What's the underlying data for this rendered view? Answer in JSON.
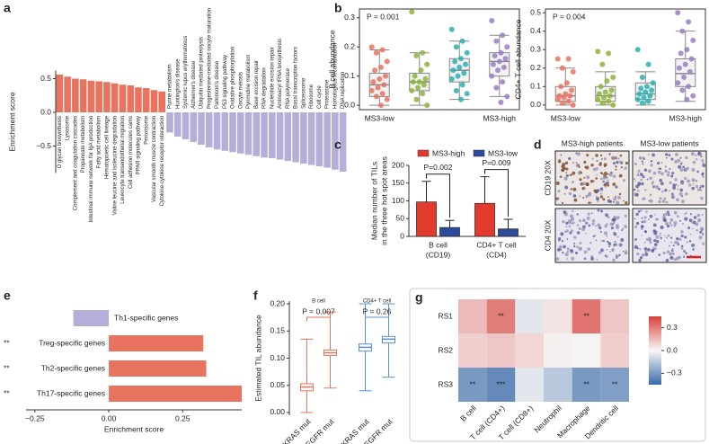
{
  "chart_data": [
    {
      "type": "bar",
      "panel": "a",
      "y_label": "Enrichment score",
      "categories": [
        "O glycan biosynthesis",
        "Lysosome",
        "Complement and coagulation cascades",
        "Propanoate metabolism",
        "Intestinal immune network for IgA production",
        "Fatty acid metabolism",
        "Hematopoietic cell lineage",
        "Valine leucine and isoleucine degradation",
        "Leukocyte transendothelial migration",
        "Cell adhesion molecules cams",
        "PPAR signaling pathway",
        "Peroxisome",
        "Vascular smooth muscle contraction",
        "Cytokine-cytokine receptor interaction",
        "Purine metabolism",
        "Huntington's disease",
        "Systemic lupus erythematosus",
        "Alzheimer's disease",
        "Ubiquitin mediated proteolysis",
        "Progesterone-mediated oocyte maturation",
        "Parkinson's disease",
        "P53 signaling pathway",
        "Oxidative phosphorylation",
        "Oocyte meiosis",
        "Pyrimidine metabolism",
        "Base excision repair",
        "RNA degradation",
        "Nucleotide excision repair",
        "Aminoacyl tRNA biosynthesis",
        "RNA polymerase",
        "Basal transcription factors",
        "Spliceosome",
        "Ribosome",
        "Cell cycle",
        "Proteasome",
        "Homologous recombination",
        "DNA replication"
      ],
      "values": [
        0.56,
        0.53,
        0.5,
        0.49,
        0.47,
        0.46,
        0.45,
        0.43,
        0.41,
        0.4,
        0.37,
        0.36,
        0.33,
        0.31,
        -0.3,
        -0.36,
        -0.4,
        -0.44,
        -0.48,
        -0.52,
        -0.55,
        -0.57,
        -0.59,
        -0.61,
        -0.63,
        -0.65,
        -0.67,
        -0.68,
        -0.7,
        -0.72,
        -0.74,
        -0.76,
        -0.78,
        -0.8,
        -0.82,
        -0.85,
        -0.88
      ],
      "colors": {
        "positive": "#e8735f",
        "negative": "#b4afd8"
      },
      "ylim": [
        -0.9,
        0.62
      ],
      "yticks": [
        0.5,
        {
          "value": 0,
          "label": "0.0"
        },
        {
          "value": -0.5,
          "label": "−0.5"
        }
      ]
    },
    {
      "type": "strip_box",
      "panel": "b",
      "y_label": "B cell abundance",
      "pvalue": "P = 0.001",
      "categories": [
        "MS3-low",
        null,
        null,
        "MS3-high"
      ],
      "ylim": [
        -0.015,
        0.33
      ],
      "yticks": [
        {
          "value": 0,
          "label": "0.0"
        },
        0.1,
        0.2,
        0.3
      ],
      "series": [
        {
          "color": "#e8735f",
          "values": [
            0.2,
            0.19,
            0.18,
            0.15,
            0.13,
            0.12,
            0.1,
            0.09,
            0.08,
            0.07,
            0.06,
            0.05,
            0.04,
            0.03,
            0.02,
            0.0
          ],
          "box": {
            "whislo": 0.0,
            "q1": 0.03,
            "med": 0.07,
            "q3": 0.11,
            "whishi": 0.19
          }
        },
        {
          "color": "#8db43b",
          "values": [
            0.32,
            0.18,
            0.17,
            0.14,
            0.12,
            0.1,
            0.09,
            0.08,
            0.08,
            0.07,
            0.06,
            0.05,
            0.04,
            0.02,
            0.0
          ],
          "box": {
            "whislo": 0.0,
            "q1": 0.05,
            "med": 0.08,
            "q3": 0.11,
            "whishi": 0.18
          }
        },
        {
          "color": "#2ab0b0",
          "values": [
            0.26,
            0.22,
            0.2,
            0.18,
            0.16,
            0.15,
            0.14,
            0.13,
            0.12,
            0.11,
            0.1,
            0.09,
            0.07,
            0.05,
            0.04,
            0.02
          ],
          "box": {
            "whislo": 0.02,
            "q1": 0.08,
            "med": 0.12,
            "q3": 0.16,
            "whishi": 0.22
          }
        },
        {
          "color": "#9a7ec3",
          "values": [
            0.29,
            0.24,
            0.22,
            0.2,
            0.18,
            0.17,
            0.16,
            0.15,
            0.14,
            0.13,
            0.12,
            0.1,
            0.08,
            0.06,
            0.03,
            0.01
          ],
          "box": {
            "whislo": 0.03,
            "q1": 0.1,
            "med": 0.15,
            "q3": 0.18,
            "whishi": 0.24
          }
        }
      ]
    },
    {
      "type": "strip_box",
      "y_label": "CD4+ T cell abundance",
      "pvalue": "P = 0.004",
      "categories": [
        "MS3-low",
        null,
        null,
        "MS3-high"
      ],
      "ylim": [
        -0.025,
        0.52
      ],
      "yticks": [
        {
          "value": 0,
          "label": "0.0"
        },
        0.1,
        0.2,
        0.3,
        0.4,
        0.5
      ],
      "series": [
        {
          "color": "#e8735f",
          "values": [
            0.25,
            0.25,
            0.2,
            0.18,
            0.12,
            0.1,
            0.08,
            0.06,
            0.05,
            0.05,
            0.04,
            0.03,
            0.02,
            0.01,
            0.0
          ],
          "box": {
            "whislo": 0.0,
            "q1": 0.02,
            "med": 0.05,
            "q3": 0.1,
            "whishi": 0.2
          }
        },
        {
          "color": "#8db43b",
          "values": [
            0.29,
            0.28,
            0.22,
            0.15,
            0.13,
            0.1,
            0.08,
            0.07,
            0.06,
            0.05,
            0.04,
            0.03,
            0.02,
            0.01,
            0.0
          ],
          "box": {
            "whislo": 0.0,
            "q1": 0.02,
            "med": 0.05,
            "q3": 0.1,
            "whishi": 0.18
          }
        },
        {
          "color": "#2ab0b0",
          "values": [
            0.3,
            0.22,
            0.15,
            0.12,
            0.1,
            0.09,
            0.08,
            0.07,
            0.06,
            0.05,
            0.04,
            0.03,
            0.02,
            0.01
          ],
          "box": {
            "whislo": 0.0,
            "q1": 0.03,
            "med": 0.06,
            "q3": 0.12,
            "whishi": 0.18
          }
        },
        {
          "color": "#9a7ec3",
          "values": [
            0.5,
            0.45,
            0.4,
            0.35,
            0.3,
            0.28,
            0.25,
            0.22,
            0.2,
            0.18,
            0.15,
            0.12,
            0.1,
            0.08,
            0.05,
            0.03
          ],
          "box": {
            "whislo": 0.02,
            "q1": 0.1,
            "med": 0.17,
            "q3": 0.25,
            "whishi": 0.4
          }
        }
      ]
    },
    {
      "type": "grouped_bar",
      "panel": "c",
      "y_label": [
        "Median number of TILs",
        "in the three hot spot areas"
      ],
      "categories": [
        [
          "B cell",
          "(CD19)"
        ],
        [
          "CD4+ T cell",
          "(CD4)"
        ]
      ],
      "pvalues": [
        "P=0.002",
        "P=0.009"
      ],
      "ylim": [
        0,
        200
      ],
      "yticks": [
        0,
        50,
        100,
        150,
        200
      ],
      "series": [
        {
          "name": "MS3-high",
          "color": "#e23b2e",
          "values": [
            97,
            93
          ],
          "errors": [
            58,
            75
          ]
        },
        {
          "name": "MS3-low",
          "color": "#2c4b9b",
          "values": [
            25,
            21
          ],
          "errors": [
            20,
            27
          ]
        }
      ]
    },
    {
      "type": "hbar",
      "panel": "e",
      "x_label": "Enrichment score",
      "categories": [
        "Th1-specific genes",
        "Treg-specific genes",
        "Th2-specific genes",
        "Th17-specific genes"
      ],
      "values": [
        -0.12,
        0.32,
        0.33,
        0.45
      ],
      "annotations": [
        null,
        "**",
        "**",
        "**"
      ],
      "colors": {
        "positive": "#e8735f",
        "negative": "#b4afd8"
      },
      "xlim": [
        -0.28,
        0.45
      ],
      "xticks": [
        {
          "value": -0.25,
          "label": "−0.25"
        },
        {
          "value": 0,
          "label": "0.00"
        },
        {
          "value": 0.25,
          "label": "0.25"
        }
      ]
    },
    {
      "type": "box",
      "panel": "f",
      "y_label": "Estimated TIL abundance",
      "ylim": [
        -0.005,
        0.205
      ],
      "yticks": [
        {
          "value": 0,
          "label": "0.00"
        },
        0.05,
        {
          "value": 0.1,
          "label": "0.10"
        },
        0.15,
        {
          "value": 0.2,
          "label": "0.20"
        }
      ],
      "groups": [
        {
          "name": "B cell",
          "color": "#e8735f",
          "pvalue": "P = 0.007",
          "categories": [
            "KRAS mut",
            "EGFR mut"
          ],
          "boxes": [
            {
              "whislo": 0.0,
              "q1": 0.04,
              "med": 0.047,
              "q3": 0.053,
              "whishi": 0.135
            },
            {
              "whislo": 0.045,
              "q1": 0.105,
              "med": 0.11,
              "q3": 0.115,
              "whishi": 0.185
            }
          ]
        },
        {
          "name": "CD4+ T cell",
          "color": "#5b8fc8",
          "pvalue": "P = 0.26",
          "categories": [
            "KRAS mut",
            "EGFR mut"
          ],
          "boxes": [
            {
              "whislo": 0.04,
              "q1": 0.113,
              "med": 0.12,
              "q3": 0.126,
              "whishi": 0.2
            },
            {
              "whislo": 0.065,
              "q1": 0.128,
              "med": 0.135,
              "q3": 0.14,
              "whishi": 0.2
            }
          ]
        }
      ]
    },
    {
      "type": "heatmap",
      "panel": "g",
      "rows": [
        "RS1",
        "RS2",
        "RS3"
      ],
      "columns": [
        "B cell",
        "T cell (CD4+)",
        "T cell (CD8+)",
        "Neutrophil",
        "Macrophage",
        "Dendritic cell"
      ],
      "values": [
        [
          0.15,
          0.3,
          -0.05,
          0.05,
          0.32,
          0.12
        ],
        [
          0.1,
          0.12,
          0.08,
          0.02,
          0.01,
          0.1
        ],
        [
          -0.3,
          -0.35,
          -0.05,
          -0.15,
          -0.3,
          -0.28
        ]
      ],
      "annotations": [
        [
          null,
          "**",
          null,
          null,
          "**",
          null
        ],
        [
          null,
          null,
          null,
          null,
          null,
          null
        ],
        [
          "**",
          "***",
          null,
          null,
          "**",
          "**"
        ]
      ],
      "colormap": [
        "#3a6aa8",
        "#f7f7f7",
        "#d6403a"
      ],
      "clim": [
        -0.45,
        0.45
      ],
      "cticks": [
        0.3,
        {
          "value": 0,
          "label": "0.0"
        },
        {
          "value": -0.3,
          "label": "−0.3"
        }
      ]
    }
  ],
  "panel_d": {
    "panel": "d",
    "columns": [
      "MS3-high patients",
      "MS3-low patients"
    ],
    "rows": [
      "CD19 20X",
      "CD4 20X"
    ]
  }
}
